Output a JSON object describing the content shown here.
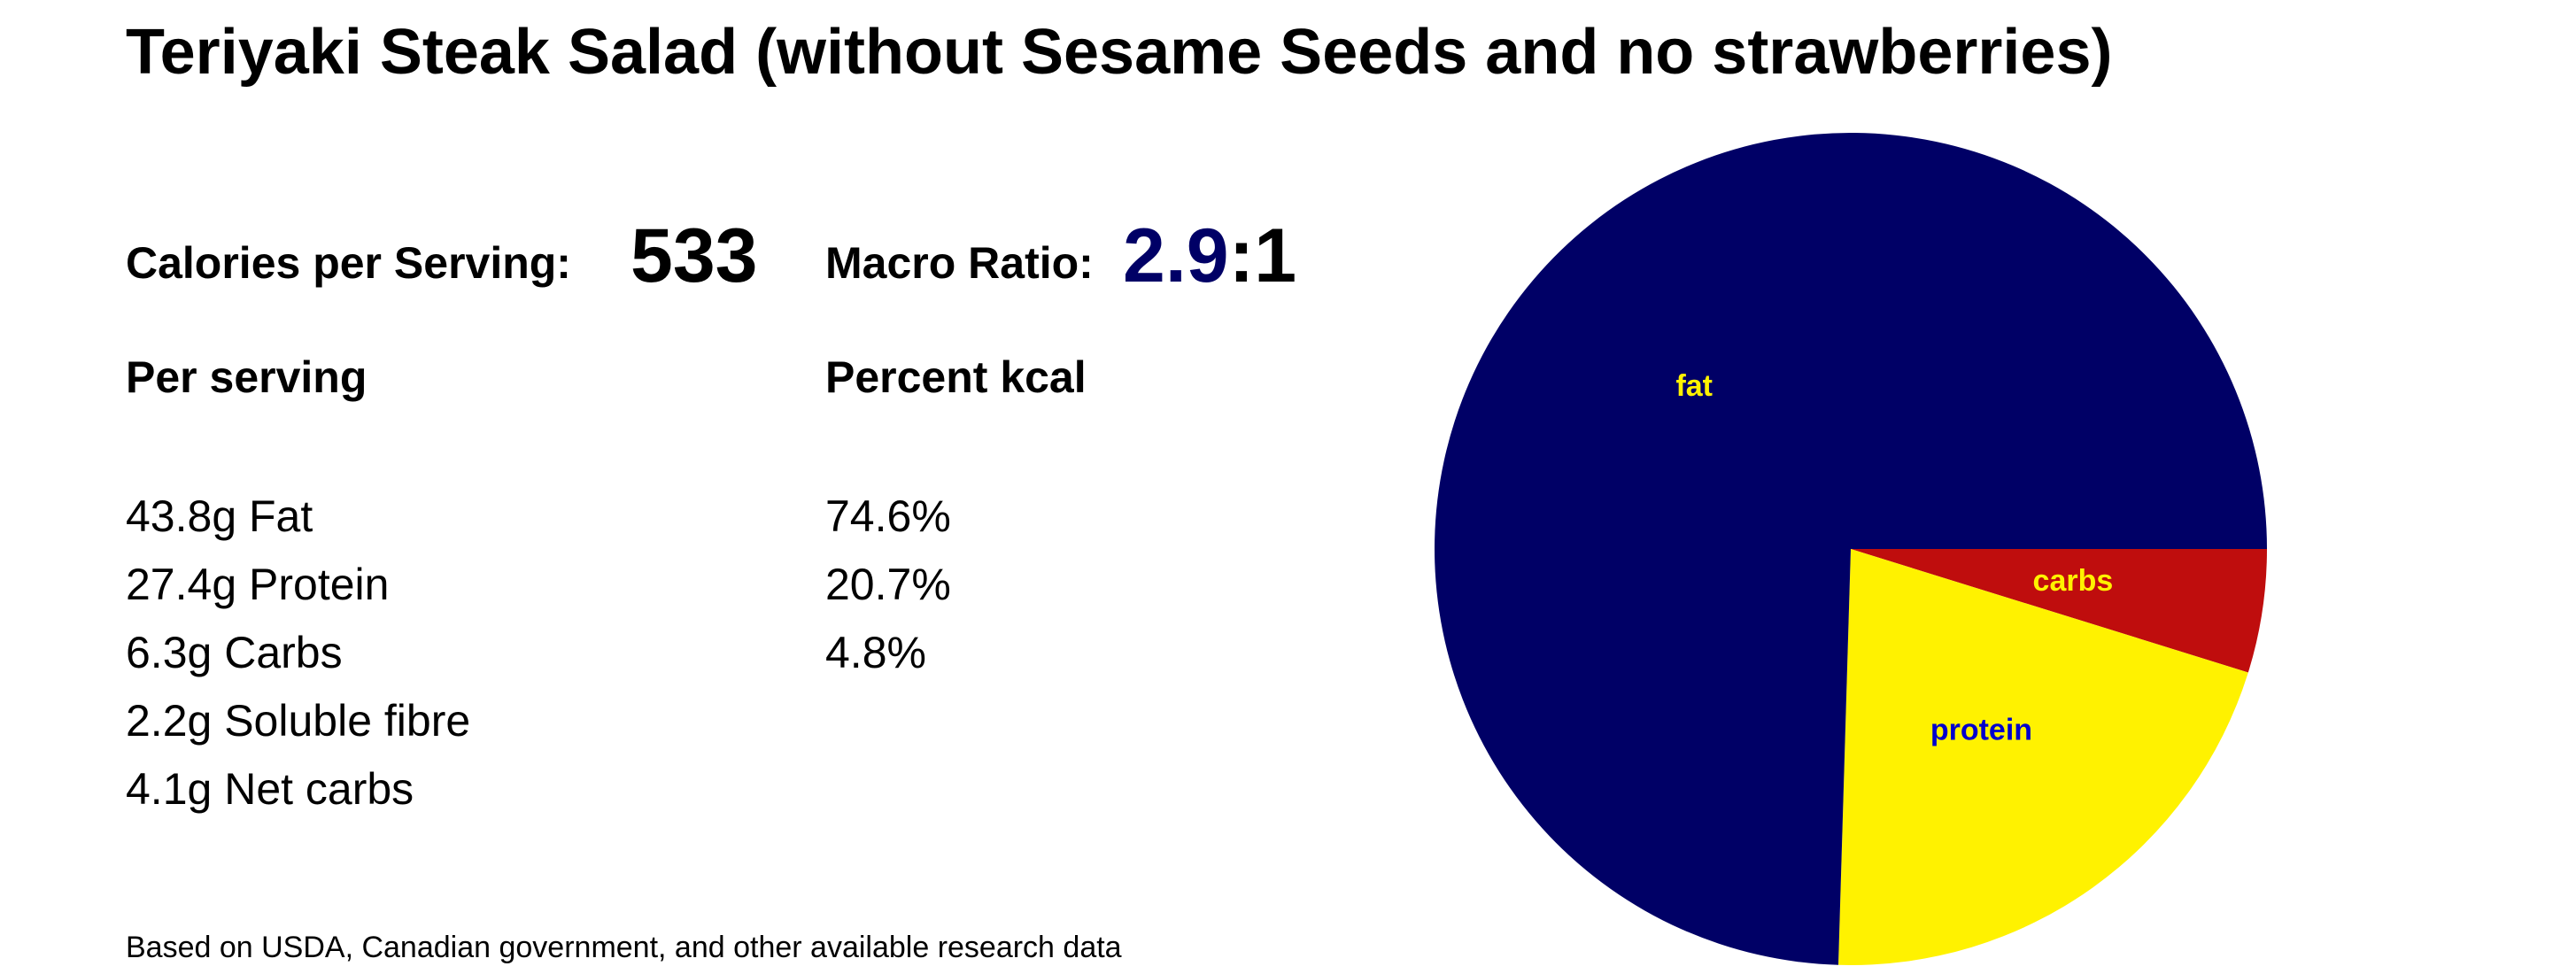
{
  "title": "Teriyaki Steak Salad (without Sesame Seeds and no strawberries)",
  "calories": {
    "label": "Calories per Serving:",
    "value": "533"
  },
  "macro_ratio": {
    "label": "Macro Ratio:",
    "numerator": "2.9",
    "separator": ":",
    "denominator": "1"
  },
  "per_serving": {
    "heading": "Per serving",
    "items": [
      "43.8g Fat",
      "27.4g Protein",
      "6.3g Carbs",
      "2.2g Soluble fibre",
      "4.1g Net carbs"
    ]
  },
  "percent_kcal": {
    "heading": "Percent kcal",
    "items": [
      "74.6%",
      "20.7%",
      "4.8%"
    ]
  },
  "footnote": "Based on USDA, Canadian government, and other available research data",
  "colors": {
    "fat": "#000066",
    "protein": "#FFF200",
    "carbs": "#BF0D0D",
    "fat_label": "#FFF200",
    "protein_label": "#0000CC",
    "carbs_label": "#FFF200",
    "ratio_accent": "#000066"
  },
  "chart_data": {
    "type": "pie",
    "start_angle_deg": 0,
    "direction": "clockwise",
    "slices": [
      {
        "label": "carbs",
        "value": 4.8,
        "color": "#BF0D0D",
        "label_color": "#FFF200"
      },
      {
        "label": "protein",
        "value": 20.7,
        "color": "#FFF200",
        "label_color": "#0000CC"
      },
      {
        "label": "fat",
        "value": 74.6,
        "color": "#000066",
        "label_color": "#FFF200"
      }
    ]
  }
}
